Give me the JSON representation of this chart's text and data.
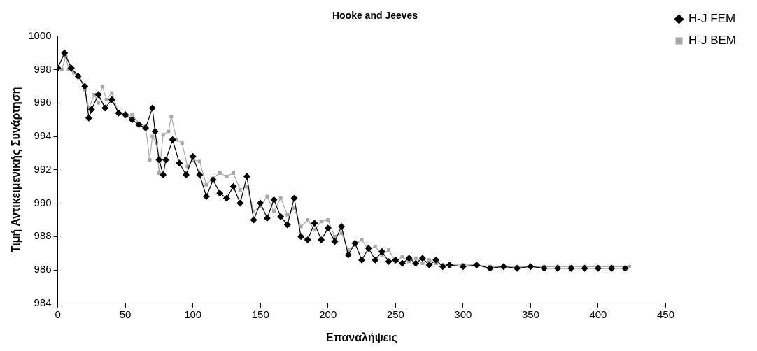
{
  "chart_data": {
    "type": "line",
    "title": "Hooke and Jeeves",
    "xlabel": "Επαναλήψεις",
    "ylabel": "Τιμή Αντικειμενικής Συνάρτηση",
    "xlim": [
      0,
      450
    ],
    "xticks": [
      0,
      50,
      100,
      150,
      200,
      250,
      300,
      350,
      400,
      450
    ],
    "ylim": [
      984,
      1000
    ],
    "yticks": [
      984,
      986,
      988,
      990,
      992,
      994,
      996,
      998,
      1000
    ],
    "grid": false,
    "legend": "top right",
    "line_style": "solid",
    "series": [
      {
        "name": "H-J FEM",
        "color": "#000000",
        "marker": "diamond",
        "x": [
          0,
          5,
          10,
          15,
          20,
          23,
          25,
          30,
          35,
          40,
          45,
          50,
          55,
          60,
          65,
          70,
          72,
          75,
          78,
          80,
          85,
          90,
          95,
          100,
          105,
          110,
          115,
          120,
          125,
          130,
          135,
          140,
          145,
          150,
          155,
          160,
          165,
          170,
          175,
          180,
          185,
          190,
          195,
          200,
          205,
          210,
          215,
          220,
          225,
          230,
          235,
          240,
          245,
          250,
          255,
          260,
          265,
          270,
          275,
          280,
          285,
          290,
          300,
          310,
          320,
          330,
          340,
          350,
          360,
          370,
          380,
          390,
          400,
          410,
          420
        ],
        "values": [
          998.1,
          999.0,
          998.1,
          997.6,
          997.0,
          995.1,
          995.6,
          996.5,
          995.7,
          996.2,
          995.4,
          995.3,
          995.0,
          994.7,
          994.5,
          995.7,
          994.3,
          992.6,
          991.7,
          992.6,
          993.8,
          992.4,
          991.7,
          992.8,
          991.7,
          990.4,
          991.4,
          990.6,
          990.3,
          991.0,
          990.0,
          991.6,
          989.0,
          990.0,
          989.1,
          990.2,
          989.2,
          988.7,
          990.3,
          988.0,
          987.8,
          988.8,
          987.8,
          988.5,
          987.7,
          988.6,
          986.9,
          987.6,
          986.6,
          987.3,
          986.6,
          987.1,
          986.5,
          986.6,
          986.4,
          986.7,
          986.4,
          986.7,
          986.3,
          986.6,
          986.2,
          986.3,
          986.2,
          986.3,
          986.1,
          986.2,
          986.1,
          986.2,
          986.1,
          986.1,
          986.1,
          986.1,
          986.1,
          986.1,
          986.1
        ]
      },
      {
        "name": "H-J BEM",
        "color": "#a8a8a8",
        "marker": "square",
        "x": [
          0,
          3,
          6,
          8,
          12,
          16,
          20,
          23,
          27,
          30,
          33,
          36,
          40,
          45,
          50,
          55,
          60,
          65,
          68,
          70,
          73,
          75,
          78,
          82,
          84,
          88,
          92,
          96,
          100,
          105,
          110,
          115,
          120,
          125,
          130,
          135,
          140,
          145,
          150,
          155,
          160,
          165,
          170,
          175,
          180,
          185,
          190,
          195,
          200,
          205,
          210,
          215,
          220,
          225,
          230,
          235,
          240,
          245,
          250,
          255,
          260,
          265,
          270,
          275,
          280,
          285,
          290,
          300,
          310,
          320,
          330,
          340,
          350,
          360,
          370,
          380,
          390,
          400,
          410,
          423
        ],
        "values": [
          998.2,
          998.0,
          998.8,
          998.0,
          997.8,
          997.6,
          996.8,
          995.7,
          996.5,
          996.0,
          997.0,
          996.2,
          996.6,
          995.4,
          995.2,
          995.3,
          994.8,
          994.6,
          992.6,
          994.0,
          993.6,
          991.8,
          994.1,
          994.3,
          995.2,
          993.8,
          993.6,
          992.2,
          992.6,
          992.5,
          991.1,
          991.5,
          991.8,
          991.6,
          991.8,
          990.8,
          991.0,
          989.5,
          989.8,
          990.4,
          989.5,
          990.3,
          989.3,
          989.7,
          988.6,
          989.0,
          988.4,
          988.9,
          989.0,
          988.0,
          988.2,
          987.2,
          987.5,
          987.8,
          987.2,
          987.4,
          986.9,
          987.2,
          986.5,
          986.8,
          986.5,
          986.7,
          986.4,
          986.6,
          986.4,
          986.3,
          986.3,
          986.3,
          986.3,
          986.2,
          986.2,
          986.2,
          986.2,
          986.2,
          986.2,
          986.2,
          986.2,
          986.2,
          986.2,
          986.2
        ]
      }
    ]
  }
}
